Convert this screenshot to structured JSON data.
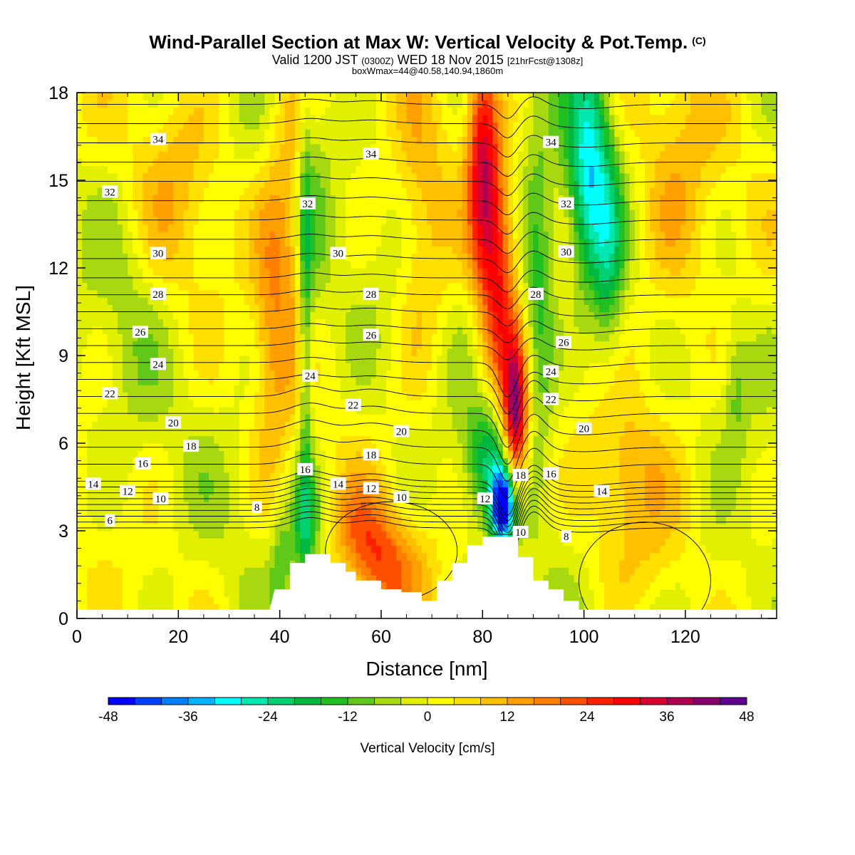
{
  "header": {
    "title": "Wind-Parallel Section at Max W: Vertical Velocity & Pot.Temp.",
    "copyright": "(C)",
    "valid_prefix": "Valid 1200 JST",
    "valid_utc": "(0300Z)",
    "valid_date": "WED 18 Nov 2015",
    "forecast": "[21hrFcst@1308z]",
    "boxwmax": "boxWmax=44@40.58,140.94,1860m"
  },
  "chart_data": {
    "type": "heatmap",
    "xlabel": "Distance [nm]",
    "ylabel": "Height [Kft MSL]",
    "xlim": [
      0,
      138
    ],
    "ylim": [
      0,
      18
    ],
    "xticks": [
      0,
      20,
      40,
      60,
      80,
      100,
      120
    ],
    "yticks": [
      0,
      3,
      6,
      9,
      12,
      15,
      18
    ],
    "grid": false,
    "colorbar": {
      "label": "Vertical Velocity [cm/s]",
      "placement": "bottom",
      "min": -48,
      "max": 48,
      "step": 4,
      "tick_labels": [
        "-48",
        "-36",
        "-24",
        "-12",
        "0",
        "12",
        "24",
        "36",
        "48"
      ],
      "colors": [
        "#0000ff",
        "#0040ff",
        "#0080ff",
        "#00b4ff",
        "#00ffff",
        "#00e8b0",
        "#00d070",
        "#00b840",
        "#20c020",
        "#60c818",
        "#a8d810",
        "#e0f000",
        "#ffff00",
        "#ffe000",
        "#ffc000",
        "#ffa000",
        "#ff8000",
        "#ff5000",
        "#ff2000",
        "#ff0000",
        "#d80030",
        "#b00050",
        "#880070",
        "#600090"
      ]
    },
    "terrain": [
      [
        38,
        0.3
      ],
      [
        39,
        1.0
      ],
      [
        42,
        1.0
      ],
      [
        42,
        1.9
      ],
      [
        45,
        1.9
      ],
      [
        45,
        2.2
      ],
      [
        50,
        2.2
      ],
      [
        50,
        1.9
      ],
      [
        53,
        1.9
      ],
      [
        53,
        1.6
      ],
      [
        55,
        1.6
      ],
      [
        55,
        1.3
      ],
      [
        60,
        1.3
      ],
      [
        60,
        1.0
      ],
      [
        64,
        1.0
      ],
      [
        64,
        0.9
      ],
      [
        68,
        0.9
      ],
      [
        68,
        0.6
      ],
      [
        71,
        0.6
      ],
      [
        71,
        1.3
      ],
      [
        74,
        1.3
      ],
      [
        74,
        1.9
      ],
      [
        77,
        1.9
      ],
      [
        77,
        2.5
      ],
      [
        80,
        2.5
      ],
      [
        80,
        2.8
      ],
      [
        87,
        2.8
      ],
      [
        87,
        2.1
      ],
      [
        90,
        2.1
      ],
      [
        90,
        1.3
      ],
      [
        93,
        1.3
      ],
      [
        93,
        1.0
      ],
      [
        96,
        1.0
      ],
      [
        96,
        0.6
      ],
      [
        99,
        0.6
      ],
      [
        99,
        0.3
      ]
    ],
    "w_features": [
      {
        "x": 84,
        "z": 3.8,
        "sx": 1.6,
        "sz": 0.9,
        "w": -48
      },
      {
        "x": 86.5,
        "z": 6.8,
        "sx": 1.8,
        "sz": 1.8,
        "w": 44
      },
      {
        "x": 81.5,
        "z": 5.5,
        "sx": 3.5,
        "sz": 1.4,
        "w": -20
      },
      {
        "x": 80,
        "z": 16,
        "sx": 2.2,
        "sz": 2.8,
        "w": 30
      },
      {
        "x": 83,
        "z": 11.5,
        "sx": 2.5,
        "sz": 3.0,
        "w": 24
      },
      {
        "x": 91,
        "z": 11,
        "sx": 2.3,
        "sz": 3.5,
        "w": -16
      },
      {
        "x": 101,
        "z": 15.5,
        "sx": 3.0,
        "sz": 2.8,
        "w": -28
      },
      {
        "x": 105,
        "z": 12,
        "sx": 2.3,
        "sz": 2.5,
        "w": -14
      },
      {
        "x": 45,
        "z": 10,
        "sx": 1.0,
        "sz": 5.5,
        "w": -16
      },
      {
        "x": 45,
        "z": 3.2,
        "sx": 2.2,
        "sz": 1.3,
        "w": -14
      },
      {
        "x": 40,
        "z": 1.8,
        "sx": 1.3,
        "sz": 1.2,
        "w": -10
      },
      {
        "x": 61,
        "z": 1.7,
        "sx": 5.0,
        "sz": 1.2,
        "w": 18
      },
      {
        "x": 56,
        "z": 3.2,
        "sx": 4.0,
        "sz": 1.2,
        "w": 12
      },
      {
        "x": 42,
        "z": 14,
        "sx": 3.0,
        "sz": 4.5,
        "w": 12
      },
      {
        "x": 38,
        "z": 10,
        "sx": 2.5,
        "sz": 4.0,
        "w": 10
      },
      {
        "x": 68,
        "z": 13,
        "sx": 3.5,
        "sz": 4.0,
        "w": 10
      },
      {
        "x": 20,
        "z": 15,
        "sx": 6.0,
        "sz": 2.5,
        "w": 8
      },
      {
        "x": 118,
        "z": 14,
        "sx": 6.0,
        "sz": 4.0,
        "w": 10
      },
      {
        "x": 108,
        "z": 5,
        "sx": 5.0,
        "sz": 1.5,
        "w": 10
      },
      {
        "x": 110,
        "z": 2,
        "sx": 7.0,
        "sz": 1.4,
        "w": 6
      },
      {
        "x": 130,
        "z": 8,
        "sx": 1.6,
        "sz": 1.5,
        "w": -8
      },
      {
        "x": 47,
        "z": 13.5,
        "sx": 2.0,
        "sz": 4.0,
        "w": -6
      },
      {
        "x": 125,
        "z": 1.5,
        "sx": 5.0,
        "sz": 1.5,
        "w": -4
      },
      {
        "x": 10,
        "z": 11,
        "sx": 4.0,
        "sz": 3.0,
        "w": -4
      }
    ],
    "theta_levels": [
      6,
      7,
      8,
      9,
      10,
      11,
      12,
      13,
      14,
      15,
      16,
      17,
      18,
      19,
      20,
      21,
      22,
      23,
      24,
      25,
      26,
      27,
      28,
      29,
      30,
      31,
      32,
      33,
      34,
      35
    ],
    "theta_labels": [
      {
        "t": "6",
        "x": 6.5,
        "z": 3.35
      },
      {
        "t": "8",
        "x": 35.5,
        "z": 3.8
      },
      {
        "t": "10",
        "x": 16.5,
        "z": 4.1
      },
      {
        "t": "12",
        "x": 10,
        "z": 4.35
      },
      {
        "t": "14",
        "x": 3.2,
        "z": 4.6
      },
      {
        "t": "16",
        "x": 13,
        "z": 5.3
      },
      {
        "t": "18",
        "x": 22.5,
        "z": 5.9
      },
      {
        "t": "20",
        "x": 19,
        "z": 6.7
      },
      {
        "t": "22",
        "x": 6.5,
        "z": 7.7
      },
      {
        "t": "24",
        "x": 16,
        "z": 8.7
      },
      {
        "t": "26",
        "x": 12.5,
        "z": 9.8
      },
      {
        "t": "28",
        "x": 16,
        "z": 11.1
      },
      {
        "t": "30",
        "x": 16,
        "z": 12.5
      },
      {
        "t": "32",
        "x": 6.5,
        "z": 14.6
      },
      {
        "t": "34",
        "x": 16,
        "z": 16.4
      },
      {
        "t": "34",
        "x": 58,
        "z": 15.9
      },
      {
        "t": "32",
        "x": 45.5,
        "z": 14.2
      },
      {
        "t": "30",
        "x": 51.5,
        "z": 12.5
      },
      {
        "t": "28",
        "x": 58,
        "z": 11.1
      },
      {
        "t": "26",
        "x": 58,
        "z": 9.7
      },
      {
        "t": "24",
        "x": 46,
        "z": 8.3
      },
      {
        "t": "22",
        "x": 54.5,
        "z": 7.3
      },
      {
        "t": "20",
        "x": 64,
        "z": 6.4
      },
      {
        "t": "18",
        "x": 58,
        "z": 5.6
      },
      {
        "t": "16",
        "x": 45,
        "z": 5.1
      },
      {
        "t": "14",
        "x": 51.5,
        "z": 4.6
      },
      {
        "t": "12",
        "x": 58,
        "z": 4.45
      },
      {
        "t": "10",
        "x": 64,
        "z": 4.15
      },
      {
        "t": "34",
        "x": 93.5,
        "z": 16.3
      },
      {
        "t": "32",
        "x": 96.5,
        "z": 14.2
      },
      {
        "t": "30",
        "x": 96.5,
        "z": 12.55
      },
      {
        "t": "28",
        "x": 90.5,
        "z": 11.1
      },
      {
        "t": "26",
        "x": 96,
        "z": 9.45
      },
      {
        "t": "24",
        "x": 93.5,
        "z": 8.45
      },
      {
        "t": "22",
        "x": 93.5,
        "z": 7.5
      },
      {
        "t": "20",
        "x": 100,
        "z": 6.5
      },
      {
        "t": "18",
        "x": 87.5,
        "z": 4.9
      },
      {
        "t": "16",
        "x": 93.5,
        "z": 4.95
      },
      {
        "t": "14",
        "x": 103.5,
        "z": 4.35
      },
      {
        "t": "12",
        "x": 80.5,
        "z": 4.1
      },
      {
        "t": "10",
        "x": 87.5,
        "z": 2.95
      },
      {
        "t": "8",
        "x": 96.5,
        "z": 2.8
      }
    ]
  }
}
